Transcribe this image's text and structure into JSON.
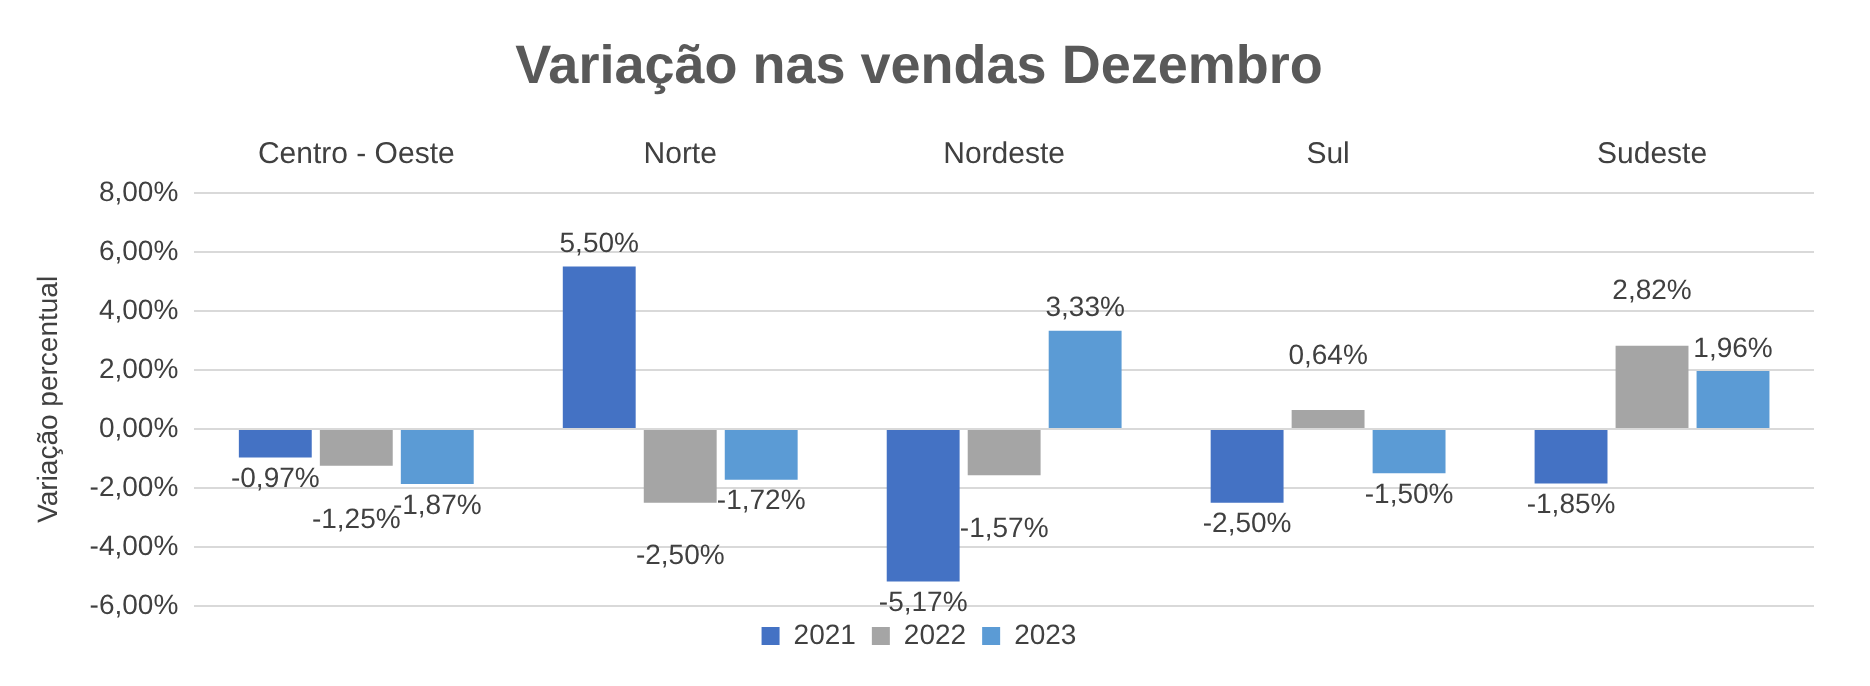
{
  "chart_data": {
    "type": "bar",
    "title": "Variação nas vendas Dezembro",
    "ylabel": "Variação percentual",
    "categories": [
      "Centro - Oeste",
      "Norte",
      "Nordeste",
      "Sul",
      "Sudeste"
    ],
    "series": [
      {
        "name": "2021",
        "color": "#4472c4",
        "values": [
          -0.97,
          5.5,
          -5.17,
          -2.5,
          -1.85
        ],
        "value_labels": [
          "-0,97%",
          "5,50%",
          "-5,17%",
          "-2,50%",
          "-1,85%"
        ]
      },
      {
        "name": "2022",
        "color": "#a5a5a5",
        "values": [
          -1.25,
          -2.5,
          -1.57,
          0.64,
          2.82
        ],
        "value_labels": [
          "-1,25%",
          "-2,50%",
          "-1,57%",
          "0,64%",
          "2,82%"
        ]
      },
      {
        "name": "2023",
        "color": "#5b9bd5",
        "values": [
          -1.87,
          -1.72,
          3.33,
          -1.5,
          1.96
        ],
        "value_labels": [
          "-1,87%",
          "-1,72%",
          "3,33%",
          "-1,50%",
          "1,96%"
        ]
      }
    ],
    "ylim": [
      -6,
      8
    ],
    "yticks": [
      {
        "value": -6,
        "label": "-6,00%"
      },
      {
        "value": -4,
        "label": "-4,00%"
      },
      {
        "value": -2,
        "label": "-2,00%"
      },
      {
        "value": 0,
        "label": "0,00%"
      },
      {
        "value": 2,
        "label": "2,00%"
      },
      {
        "value": 4,
        "label": "4,00%"
      },
      {
        "value": 6,
        "label": "6,00%"
      },
      {
        "value": 8,
        "label": "8,00%"
      }
    ],
    "grid": "y",
    "legend": "bottom"
  }
}
